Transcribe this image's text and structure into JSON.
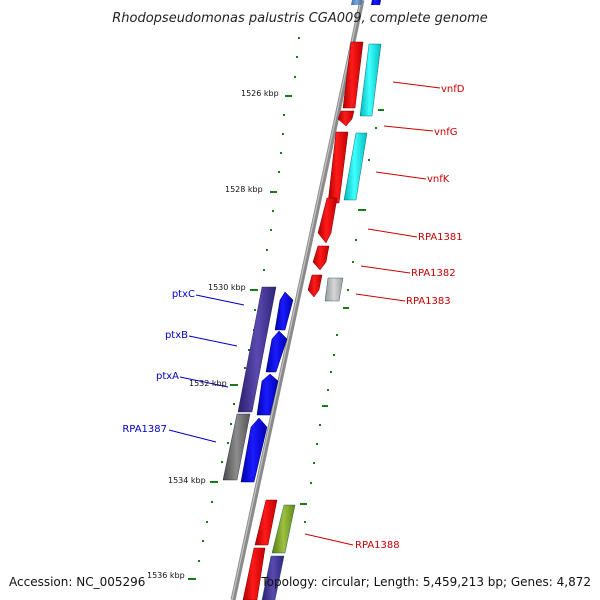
{
  "title": "Rhodopseudomonas palustris CGA009, complete genome",
  "footer": {
    "accession": "Accession: NC_005296",
    "topology": "Topology: circular; Length: 5,459,213 bp; Genes: 4,872"
  },
  "ticks": [
    "1526 kbp",
    "1528 kbp",
    "1530 kbp",
    "1532 kbp",
    "1534 kbp",
    "1536 kbp"
  ],
  "gene_labels": {
    "vnfD": "vnfD",
    "vnfG": "vnfG",
    "vnfK": "vnfK",
    "RPA1381": "RPA1381",
    "RPA1382": "RPA1382",
    "RPA1383": "RPA1383",
    "ptxC": "ptxC",
    "ptxB": "ptxB",
    "ptxA": "ptxA",
    "RPA1387": "RPA1387",
    "RPA1388": "RPA1388"
  },
  "colors": {
    "forward_label": "#cc0000",
    "reverse_label": "#0000cc",
    "red_gene": "#ff0000",
    "blue_gene": "#0000ff",
    "cyan_feature": "#00e5e5",
    "indigo_feature": "#3a2d8c",
    "gray_feature": "#6e6e6e",
    "olive_feature": "#7aa020",
    "backbone": "#8a8a8a",
    "gc_dots": "#1a7a1a"
  }
}
